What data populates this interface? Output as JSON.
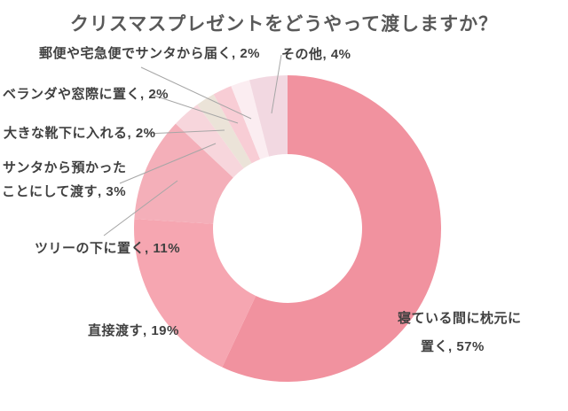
{
  "title": "クリスマスプレゼントをどうやって渡しますか？",
  "chart_data": {
    "type": "pie",
    "variant": "donut",
    "title": "クリスマスプレゼントをどうやって渡しますか？",
    "unit": "%",
    "order": "clockwise-from-top",
    "legend": "none",
    "labels_style": "outside-callouts",
    "segments": [
      {
        "label": "寝ている間に枕元に置く",
        "value": 57,
        "color": "#F1929F"
      },
      {
        "label": "直接渡す",
        "value": 19,
        "color": "#F6A6B1"
      },
      {
        "label": "ツリーの下に置く",
        "value": 11,
        "color": "#F4AFB9"
      },
      {
        "label": "サンタから預かったことにして渡す",
        "value": 3,
        "color": "#F7D6DC"
      },
      {
        "label": "大きな靴下に入れる",
        "value": 2,
        "color": "#EBE3D8"
      },
      {
        "label": "ベランダや窓際に置く",
        "value": 2,
        "color": "#F8CDD5"
      },
      {
        "label": "郵便や宅急便でサンタから届く",
        "value": 2,
        "color": "#FBEDF1"
      },
      {
        "label": "その他",
        "value": 4,
        "color": "#F2D8E1"
      }
    ]
  },
  "callouts": {
    "yubin": "郵便や宅急便でサンタから届く, 2%",
    "sonota": "その他, 4%",
    "veranda": "ベランダや窓際に置く, 2%",
    "kutsushita": "大きな靴下に入れる, 2%",
    "santa_line1": "サンタから預かった",
    "santa_line2": "ことにして渡す, 3%",
    "tree": "ツリーの下に置く, 11%",
    "chokusetsu": "直接渡す, 19%",
    "makura_line1": "寝ている間に枕元に",
    "makura_line2": "置く, 57%"
  },
  "colors": {
    "title_text": "#595959",
    "label_text": "#404040",
    "leader_line": "#A6A6A6",
    "background": "#FFFFFF"
  }
}
